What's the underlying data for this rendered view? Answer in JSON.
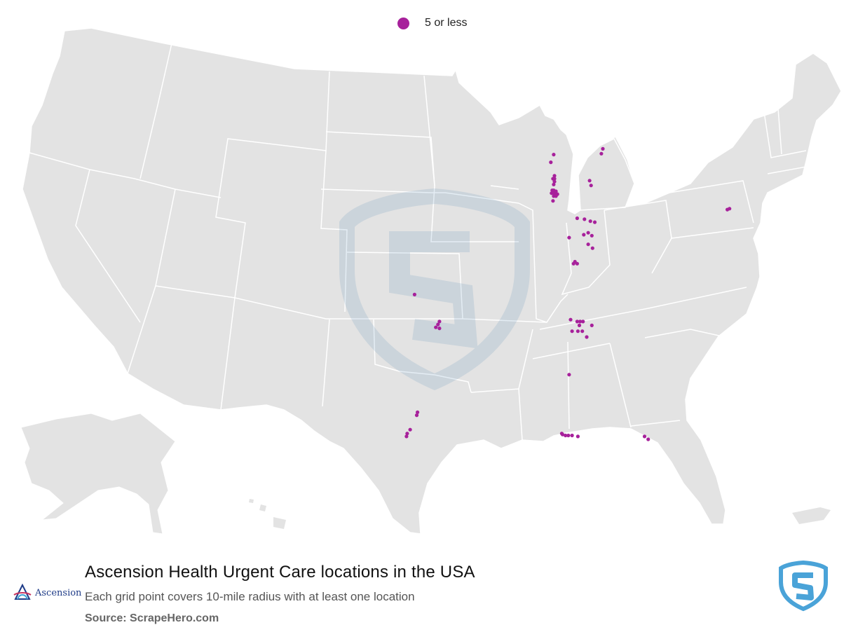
{
  "legend": {
    "label": "5 or less",
    "color": "#a7219b"
  },
  "title": "Ascension Health Urgent Care locations in the USA",
  "subtitle": "Each grid point covers 10-mile radius with at least one location",
  "source": "Source: ScrapeHero.com",
  "brand": {
    "name": "Ascension",
    "icon": "ascension-icon"
  },
  "watermark": {
    "icon": "scrapehero-shield-icon",
    "color": "#4aa3d8"
  },
  "map": {
    "land_color": "#e3e3e3",
    "border_color": "#ffffff",
    "marker_color": "#a7219b",
    "locations": [
      {
        "region": "Wisconsin",
        "lat": 44.95,
        "lon": -87.85
      },
      {
        "region": "Wisconsin",
        "lat": 44.55,
        "lon": -88.05
      },
      {
        "region": "Wisconsin",
        "lat": 43.85,
        "lon": -87.8
      },
      {
        "region": "Wisconsin",
        "lat": 43.7,
        "lon": -87.9
      },
      {
        "region": "Wisconsin",
        "lat": 43.7,
        "lon": -87.8
      },
      {
        "region": "Wisconsin",
        "lat": 43.55,
        "lon": -87.8
      },
      {
        "region": "Wisconsin",
        "lat": 43.4,
        "lon": -87.85
      },
      {
        "region": "Wisconsin",
        "lat": 43.1,
        "lon": -87.95
      },
      {
        "region": "Wisconsin",
        "lat": 43.1,
        "lon": -87.85
      },
      {
        "region": "Wisconsin",
        "lat": 43.05,
        "lon": -87.7
      },
      {
        "region": "Wisconsin",
        "lat": 42.95,
        "lon": -88.0
      },
      {
        "region": "Wisconsin",
        "lat": 42.95,
        "lon": -87.85
      },
      {
        "region": "Wisconsin",
        "lat": 42.9,
        "lon": -87.7
      },
      {
        "region": "Wisconsin",
        "lat": 42.9,
        "lon": -87.6
      },
      {
        "region": "Wisconsin",
        "lat": 42.8,
        "lon": -87.85
      },
      {
        "region": "Wisconsin",
        "lat": 42.8,
        "lon": -87.7
      },
      {
        "region": "Illinois",
        "lat": 42.55,
        "lon": -87.9
      },
      {
        "region": "Michigan",
        "lat": 45.25,
        "lon": -84.5
      },
      {
        "region": "Michigan",
        "lat": 45.0,
        "lon": -84.6
      },
      {
        "region": "Michigan",
        "lat": 43.6,
        "lon": -85.4
      },
      {
        "region": "Michigan",
        "lat": 43.35,
        "lon": -85.3
      },
      {
        "region": "Indiana",
        "lat": 41.65,
        "lon": -86.25
      },
      {
        "region": "Indiana",
        "lat": 41.6,
        "lon": -85.75
      },
      {
        "region": "Indiana",
        "lat": 41.5,
        "lon": -85.35
      },
      {
        "region": "Indiana",
        "lat": 41.45,
        "lon": -85.05
      },
      {
        "region": "Indiana",
        "lat": 40.9,
        "lon": -85.5
      },
      {
        "region": "Indiana",
        "lat": 40.8,
        "lon": -85.8
      },
      {
        "region": "Indiana",
        "lat": 40.75,
        "lon": -85.25
      },
      {
        "region": "Indiana",
        "lat": 40.65,
        "lon": -86.8
      },
      {
        "region": "Indiana",
        "lat": 40.3,
        "lon": -85.5
      },
      {
        "region": "Indiana",
        "lat": 40.1,
        "lon": -85.2
      },
      {
        "region": "Indiana",
        "lat": 39.4,
        "lon": -86.4
      },
      {
        "region": "Indiana",
        "lat": 39.3,
        "lon": -86.5
      },
      {
        "region": "Indiana",
        "lat": 39.3,
        "lon": -86.25
      },
      {
        "region": "Tennessee",
        "lat": 36.4,
        "lon": -86.7
      },
      {
        "region": "Tennessee",
        "lat": 36.3,
        "lon": -86.25
      },
      {
        "region": "Tennessee",
        "lat": 36.3,
        "lon": -86.05
      },
      {
        "region": "Tennessee",
        "lat": 36.3,
        "lon": -85.85
      },
      {
        "region": "Tennessee",
        "lat": 36.1,
        "lon": -86.1
      },
      {
        "region": "Tennessee",
        "lat": 36.1,
        "lon": -85.25
      },
      {
        "region": "Tennessee",
        "lat": 35.8,
        "lon": -86.6
      },
      {
        "region": "Tennessee",
        "lat": 35.8,
        "lon": -86.2
      },
      {
        "region": "Tennessee",
        "lat": 35.8,
        "lon": -85.9
      },
      {
        "region": "Tennessee",
        "lat": 35.5,
        "lon": -85.6
      },
      {
        "region": "Alabama",
        "lat": 33.55,
        "lon": -86.8
      },
      {
        "region": "Florida",
        "lat": 30.5,
        "lon": -87.3
      },
      {
        "region": "Florida",
        "lat": 30.45,
        "lon": -87.25
      },
      {
        "region": "Florida",
        "lat": 30.4,
        "lon": -87.05
      },
      {
        "region": "Florida",
        "lat": 30.4,
        "lon": -86.85
      },
      {
        "region": "Florida",
        "lat": 30.4,
        "lon": -86.6
      },
      {
        "region": "Florida",
        "lat": 30.35,
        "lon": -86.2
      },
      {
        "region": "Florida",
        "lat": 30.35,
        "lon": -81.65
      },
      {
        "region": "Florida",
        "lat": 30.2,
        "lon": -81.4
      },
      {
        "region": "New York",
        "lat": 42.1,
        "lon": -76.0
      },
      {
        "region": "New York",
        "lat": 42.15,
        "lon": -75.85
      },
      {
        "region": "Kansas",
        "lat": 37.7,
        "lon": -97.35
      },
      {
        "region": "Oklahoma",
        "lat": 36.3,
        "lon": -95.65
      },
      {
        "region": "Oklahoma",
        "lat": 36.15,
        "lon": -95.75
      },
      {
        "region": "Oklahoma",
        "lat": 35.95,
        "lon": -95.65
      },
      {
        "region": "Oklahoma",
        "lat": 36.0,
        "lon": -95.9
      },
      {
        "region": "Texas",
        "lat": 31.6,
        "lon": -97.15
      },
      {
        "region": "Texas",
        "lat": 31.45,
        "lon": -97.2
      },
      {
        "region": "Texas",
        "lat": 30.7,
        "lon": -97.65
      },
      {
        "region": "Texas",
        "lat": 30.5,
        "lon": -97.85
      },
      {
        "region": "Texas",
        "lat": 30.35,
        "lon": -97.9
      }
    ]
  }
}
